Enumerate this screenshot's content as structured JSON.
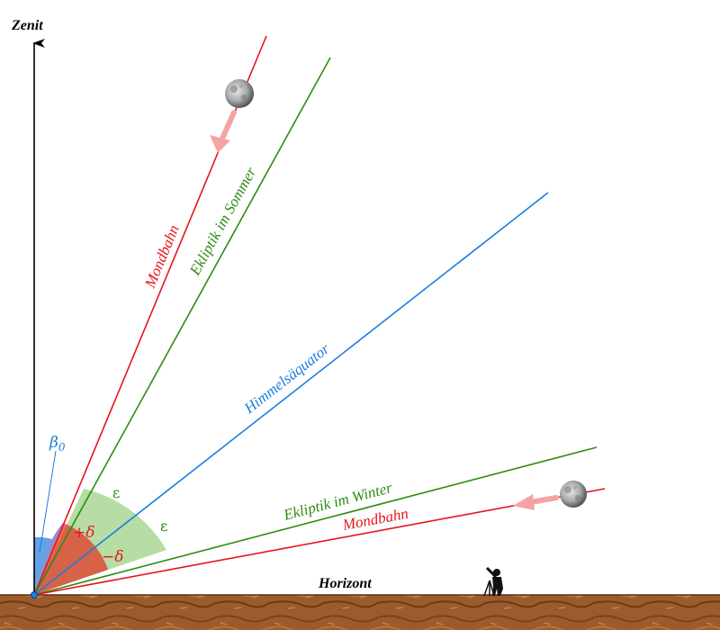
{
  "axes": {
    "zenith_label": "Zenit",
    "horizon_label": "Horizont"
  },
  "lines": {
    "moon_orbit_high": "Mondbahn",
    "ecliptic_summer": "Ekliptik im Sommer",
    "celestial_equator": "Himmelsäquator",
    "ecliptic_winter": "Ekliptik im Winter",
    "moon_orbit_low": "Mondbahn"
  },
  "angles": {
    "beta": "β",
    "beta_sub": "0",
    "epsilon_upper": "ε",
    "epsilon_lower": "ε",
    "plus_delta": "+δ",
    "minus_delta": "−δ"
  },
  "colors": {
    "moon_orbit": "#e8141c",
    "ecliptic": "#2e8b12",
    "equator": "#1a7ee0",
    "zenith_axis": "#000000",
    "ground": "#9a5a2a",
    "beta_sector": "#4a90e2",
    "delta_sector": "#e03a2a",
    "epsilon_sector": "#7cbf5a",
    "motion_arrow": "#f4a3a3"
  },
  "icons": {
    "moon_upper": "moon-icon",
    "moon_lower": "moon-icon",
    "observer": "telescope-observer-icon"
  }
}
